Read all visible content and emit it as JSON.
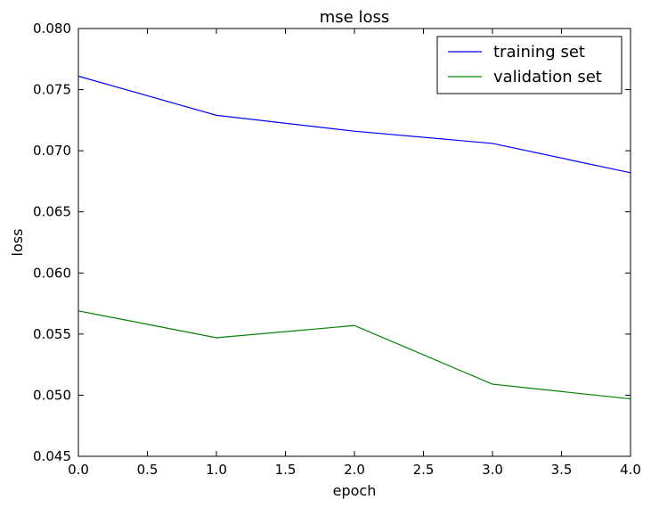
{
  "chart_data": {
    "type": "line",
    "title": "mse loss",
    "xlabel": "epoch",
    "ylabel": "loss",
    "xlim": [
      0.0,
      4.0
    ],
    "ylim": [
      0.045,
      0.08
    ],
    "x_ticks": [
      "0.0",
      "0.5",
      "1.0",
      "1.5",
      "2.0",
      "2.5",
      "3.0",
      "3.5",
      "4.0"
    ],
    "x_tick_values": [
      0.0,
      0.5,
      1.0,
      1.5,
      2.0,
      2.5,
      3.0,
      3.5,
      4.0
    ],
    "y_ticks": [
      "0.045",
      "0.050",
      "0.055",
      "0.060",
      "0.065",
      "0.070",
      "0.075",
      "0.080"
    ],
    "y_tick_values": [
      0.045,
      0.05,
      0.055,
      0.06,
      0.065,
      0.07,
      0.075,
      0.08
    ],
    "grid": false,
    "legend_position": "top-right",
    "x": [
      0,
      1,
      2,
      3,
      4
    ],
    "series": [
      {
        "name": "training set",
        "color": "#0000ff",
        "values": [
          0.0761,
          0.0729,
          0.0716,
          0.0706,
          0.0682
        ]
      },
      {
        "name": "validation set",
        "color": "#008000",
        "values": [
          0.0569,
          0.0547,
          0.0557,
          0.0509,
          0.0497
        ]
      }
    ]
  }
}
